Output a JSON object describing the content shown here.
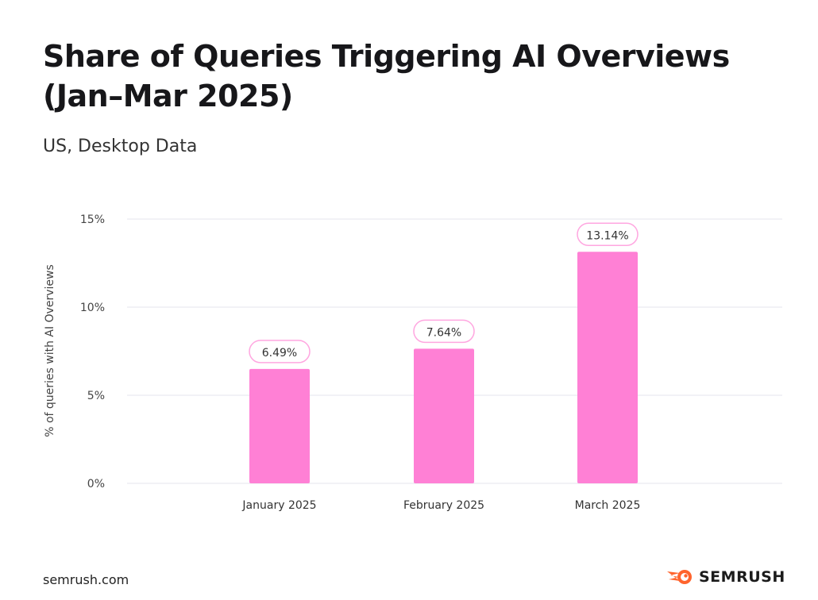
{
  "header": {
    "title_line1": "Share of Queries Triggering AI Overviews",
    "title_line2": "(Jan–Mar 2025)",
    "subtitle": "US, Desktop Data"
  },
  "footer": {
    "source": "semrush.com",
    "logo_text": "SEMRUSH"
  },
  "chart_data": {
    "type": "bar",
    "categories": [
      "January 2025",
      "February 2025",
      "March 2025"
    ],
    "values": [
      6.49,
      7.64,
      13.14
    ],
    "data_labels": [
      "6.49%",
      "7.64%",
      "13.14%"
    ],
    "ylabel": "% of queries with AI Overviews",
    "ylim": [
      0,
      15
    ],
    "yticks": [
      0,
      5,
      10,
      15
    ],
    "ytick_labels": [
      "0%",
      "5%",
      "10%",
      "15%"
    ],
    "grid": true,
    "bar_color": "#ff80d5",
    "label_border_color": "#ffa6e0"
  }
}
